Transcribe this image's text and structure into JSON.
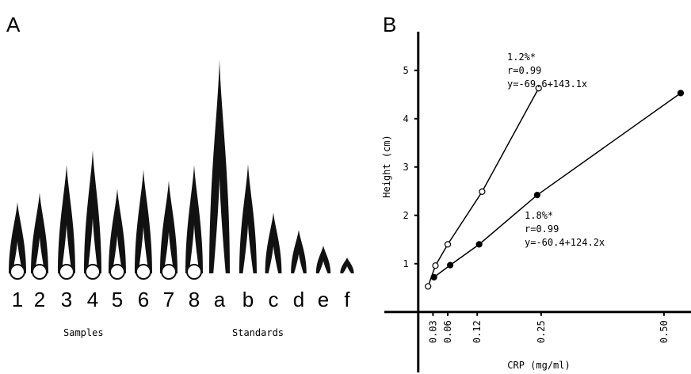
{
  "panel_a": {
    "label": "A",
    "lanes": [
      "1",
      "2",
      "3",
      "4",
      "5",
      "6",
      "7",
      "8",
      "a",
      "b",
      "c",
      "d",
      "e",
      "f"
    ],
    "groups": [
      "Samples",
      "Standards"
    ]
  },
  "chart_data": {
    "type": "line",
    "panel_label": "B",
    "x_label": "CRP (mg/ml)",
    "y_label": "Height (cm)",
    "xlim": [
      -0.069,
      0.555
    ],
    "ylim": [
      -1.25,
      5.8
    ],
    "xticks": [
      0.03,
      0.06,
      0.12,
      0.25,
      {
        "value": 0.5,
        "label": "0.50"
      }
    ],
    "yticks": [
      1,
      2,
      3,
      4,
      5
    ],
    "series": [
      {
        "color": "#000000",
        "fill": "#ffffff",
        "x": [
          0.02,
          0.035,
          0.06,
          0.13,
          0.245
        ],
        "values": [
          0.53,
          0.96,
          1.4,
          2.49,
          4.63
        ]
      },
      {
        "color": "#000000",
        "fill": "#000000",
        "x": [
          0.032,
          0.065,
          0.124,
          0.242,
          0.534
        ],
        "values": [
          0.72,
          0.97,
          1.4,
          2.42,
          4.53
        ]
      }
    ],
    "annotations": [
      "1.2%*",
      "r=0.99",
      "y=-69.6+143.1x",
      "1.8%*",
      "r=0.99",
      "y=-60.4+124.2x"
    ]
  }
}
